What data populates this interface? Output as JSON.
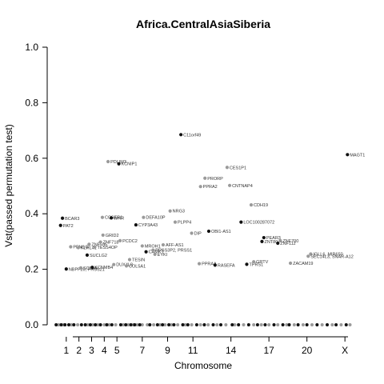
{
  "chart_data": {
    "type": "scatter",
    "title": "Africa.CentralAsiaSiberia",
    "xlabel": "Chromosome",
    "ylabel": "Vst(passed permutation test)",
    "ylim": [
      0,
      1
    ],
    "yticks": [
      "0.0",
      "0.2",
      "0.4",
      "0.6",
      "0.8",
      "1.0"
    ],
    "xticks": [
      "1",
      "2",
      "3",
      "4",
      "5",
      "7",
      "9",
      "11",
      "14",
      "17",
      "20",
      "X"
    ],
    "xtick_positions": [
      1,
      2,
      3,
      4,
      5,
      7,
      9,
      11,
      14,
      17,
      20,
      23
    ],
    "xlim": [
      0,
      24
    ],
    "grid": false,
    "legend": "none",
    "colors": {
      "black": "#111111",
      "gray": "#9a9a9a"
    },
    "points": [
      {
        "label": "PAT2",
        "x": 0.55,
        "y": 0.358,
        "color": "black"
      },
      {
        "label": "BCAR3",
        "x": 0.7,
        "y": 0.384,
        "color": "black"
      },
      {
        "label": "NBPF20, PRSS21",
        "x": 1.0,
        "y": 0.201,
        "color": "black"
      },
      {
        "label": "PPM1G",
        "x": 1.35,
        "y": 0.281,
        "color": "gray"
      },
      {
        "label": "KLHL41",
        "x": 1.95,
        "y": 0.278,
        "color": "gray"
      },
      {
        "label": "SCL9A",
        "x": 2.15,
        "y": 0.205,
        "color": "gray"
      },
      {
        "label": "SUCLG2",
        "x": 2.65,
        "y": 0.251,
        "color": "black"
      },
      {
        "label": "ZNF595",
        "x": 2.8,
        "y": 0.29,
        "color": "gray"
      },
      {
        "label": "KCNMB4",
        "x": 3.05,
        "y": 0.207,
        "color": "black"
      },
      {
        "label": "TESS4OP",
        "x": 3.25,
        "y": 0.28,
        "color": "gray"
      },
      {
        "label": "GRID2",
        "x": 3.9,
        "y": 0.323,
        "color": "gray"
      },
      {
        "label": "CCSER1",
        "x": 3.85,
        "y": 0.387,
        "color": "gray"
      },
      {
        "label": "ZNF718",
        "x": 3.7,
        "y": 0.298,
        "color": "gray"
      },
      {
        "label": "WHR",
        "x": 4.55,
        "y": 0.385,
        "color": "black"
      },
      {
        "label": "PDLIM3",
        "x": 4.3,
        "y": 0.588,
        "color": "gray"
      },
      {
        "label": "KCNIP1",
        "x": 5.15,
        "y": 0.58,
        "color": "black"
      },
      {
        "label": "DUX4L8",
        "x": 4.75,
        "y": 0.217,
        "color": "gray"
      },
      {
        "label": "PCDC2",
        "x": 5.25,
        "y": 0.303,
        "color": "gray"
      },
      {
        "label": "COL5A1",
        "x": 5.75,
        "y": 0.212,
        "color": "gray"
      },
      {
        "label": "TESIN",
        "x": 6.0,
        "y": 0.235,
        "color": "gray"
      },
      {
        "label": "CYP3A43",
        "x": 6.5,
        "y": 0.36,
        "color": "black"
      },
      {
        "label": "DEFA10P",
        "x": 7.1,
        "y": 0.387,
        "color": "gray"
      },
      {
        "label": "MROH1",
        "x": 7.0,
        "y": 0.284,
        "color": "gray"
      },
      {
        "label": "CAMKT",
        "x": 7.3,
        "y": 0.263,
        "color": "black"
      },
      {
        "label": "PRSS3P2, PRSS1",
        "x": 7.85,
        "y": 0.269,
        "color": "gray"
      },
      {
        "label": "EYKI",
        "x": 8.0,
        "y": 0.254,
        "color": "gray"
      },
      {
        "label": "AFF-AS1",
        "x": 8.65,
        "y": 0.288,
        "color": "gray"
      },
      {
        "label": "NRG3",
        "x": 9.2,
        "y": 0.41,
        "color": "gray"
      },
      {
        "label": "PLPP4",
        "x": 9.6,
        "y": 0.37,
        "color": "gray"
      },
      {
        "label": "C11orf49",
        "x": 10.05,
        "y": 0.685,
        "color": "black"
      },
      {
        "label": "DIP",
        "x": 10.9,
        "y": 0.33,
        "color": "gray"
      },
      {
        "label": "PRORP",
        "x": 11.95,
        "y": 0.528,
        "color": "gray"
      },
      {
        "label": "PPRA2",
        "x": 11.6,
        "y": 0.498,
        "color": "gray"
      },
      {
        "label": "PPRAA",
        "x": 11.5,
        "y": 0.22,
        "color": "gray"
      },
      {
        "label": "OBI1-AS1",
        "x": 12.25,
        "y": 0.337,
        "color": "black"
      },
      {
        "label": "RASEFA",
        "x": 12.75,
        "y": 0.215,
        "color": "black"
      },
      {
        "label": "CES1P1",
        "x": 13.7,
        "y": 0.567,
        "color": "gray"
      },
      {
        "label": "CNTNAP4",
        "x": 13.9,
        "y": 0.502,
        "color": "gray"
      },
      {
        "label": "LOC100287072",
        "x": 14.8,
        "y": 0.37,
        "color": "black"
      },
      {
        "label": "CDH19",
        "x": 15.6,
        "y": 0.432,
        "color": "gray"
      },
      {
        "label": "TPRS1",
        "x": 15.25,
        "y": 0.218,
        "color": "black"
      },
      {
        "label": "GRTV",
        "x": 15.8,
        "y": 0.227,
        "color": "gray"
      },
      {
        "label": "PEAR3",
        "x": 16.6,
        "y": 0.314,
        "color": "black"
      },
      {
        "label": "ZNT80",
        "x": 16.45,
        "y": 0.3,
        "color": "black"
      },
      {
        "label": "ZNF700",
        "x": 17.9,
        "y": 0.303,
        "color": "gray"
      },
      {
        "label": "ZNF112",
        "x": 17.7,
        "y": 0.294,
        "color": "black"
      },
      {
        "label": "ZACAM19",
        "x": 18.7,
        "y": 0.222,
        "color": "gray"
      },
      {
        "label": "IGLL6, MIR650",
        "x": 20.3,
        "y": 0.255,
        "color": "gray"
      },
      {
        "label": "SEC14L3, SNAR-A12",
        "x": 20.1,
        "y": 0.247,
        "color": "gray"
      },
      {
        "label": "MAGT1",
        "x": 23.2,
        "y": 0.613,
        "color": "black"
      }
    ],
    "baseline_points": {
      "black": [
        0.2,
        0.6,
        0.9,
        1.2,
        1.6,
        2.2,
        2.5,
        2.9,
        3.3,
        3.7,
        4.2,
        4.6,
        5.3,
        5.7,
        6.1,
        6.4,
        6.8,
        7.6,
        8.2,
        8.6,
        9.1,
        9.5,
        10.2,
        10.6,
        11.3,
        11.9,
        12.6,
        13.2,
        14.1,
        14.6,
        15.4,
        16.1,
        16.7,
        17.4,
        18.1,
        18.6,
        19.3,
        20.0,
        20.8,
        21.6,
        22.3,
        23.1
      ],
      "gray": [
        0.4,
        0.8,
        1.4,
        1.9,
        2.7,
        3.1,
        3.5,
        4.0,
        4.4,
        4.9,
        5.5,
        5.9,
        6.3,
        6.6,
        7.0,
        7.4,
        7.9,
        8.4,
        8.8,
        9.3,
        9.8,
        10.4,
        10.9,
        11.6,
        12.2,
        12.9,
        13.6,
        14.3,
        15.0,
        15.8,
        16.4,
        17.0,
        17.7,
        18.4,
        19.0,
        19.7,
        20.4,
        21.2,
        22.0,
        22.7,
        23.4
      ]
    }
  }
}
